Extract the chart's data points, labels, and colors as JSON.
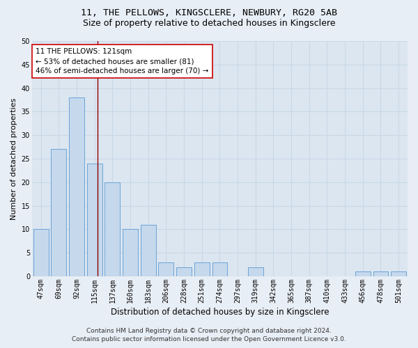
{
  "title": "11, THE PELLOWS, KINGSCLERE, NEWBURY, RG20 5AB",
  "subtitle": "Size of property relative to detached houses in Kingsclere",
  "xlabel": "Distribution of detached houses by size in Kingsclere",
  "ylabel": "Number of detached properties",
  "categories": [
    "47sqm",
    "69sqm",
    "92sqm",
    "115sqm",
    "137sqm",
    "160sqm",
    "183sqm",
    "206sqm",
    "228sqm",
    "251sqm",
    "274sqm",
    "297sqm",
    "319sqm",
    "342sqm",
    "365sqm",
    "387sqm",
    "410sqm",
    "433sqm",
    "456sqm",
    "478sqm",
    "501sqm"
  ],
  "values": [
    10,
    27,
    38,
    24,
    20,
    10,
    11,
    3,
    2,
    3,
    3,
    0,
    2,
    0,
    0,
    0,
    0,
    0,
    1,
    1,
    1
  ],
  "bar_color": "#c5d8ec",
  "bar_edge_color": "#5b9bd5",
  "bar_width": 0.85,
  "ylim": [
    0,
    50
  ],
  "yticks": [
    0,
    5,
    10,
    15,
    20,
    25,
    30,
    35,
    40,
    45,
    50
  ],
  "vline_pos": 3.15,
  "vline_color": "#8b0000",
  "annotation_text": "11 THE PELLOWS: 121sqm\n← 53% of detached houses are smaller (81)\n46% of semi-detached houses are larger (70) →",
  "annotation_box_color": "#cc0000",
  "annotation_bg": "#ffffff",
  "footer_line1": "Contains HM Land Registry data © Crown copyright and database right 2024.",
  "footer_line2": "Contains public sector information licensed under the Open Government Licence v3.0.",
  "background_color": "#e8eef5",
  "plot_bg_color": "#dce6f0",
  "grid_color": "#c8d8e8",
  "title_fontsize": 9.5,
  "subtitle_fontsize": 9,
  "xlabel_fontsize": 8.5,
  "ylabel_fontsize": 8,
  "tick_fontsize": 7,
  "annotation_fontsize": 7.5,
  "footer_fontsize": 6.5
}
